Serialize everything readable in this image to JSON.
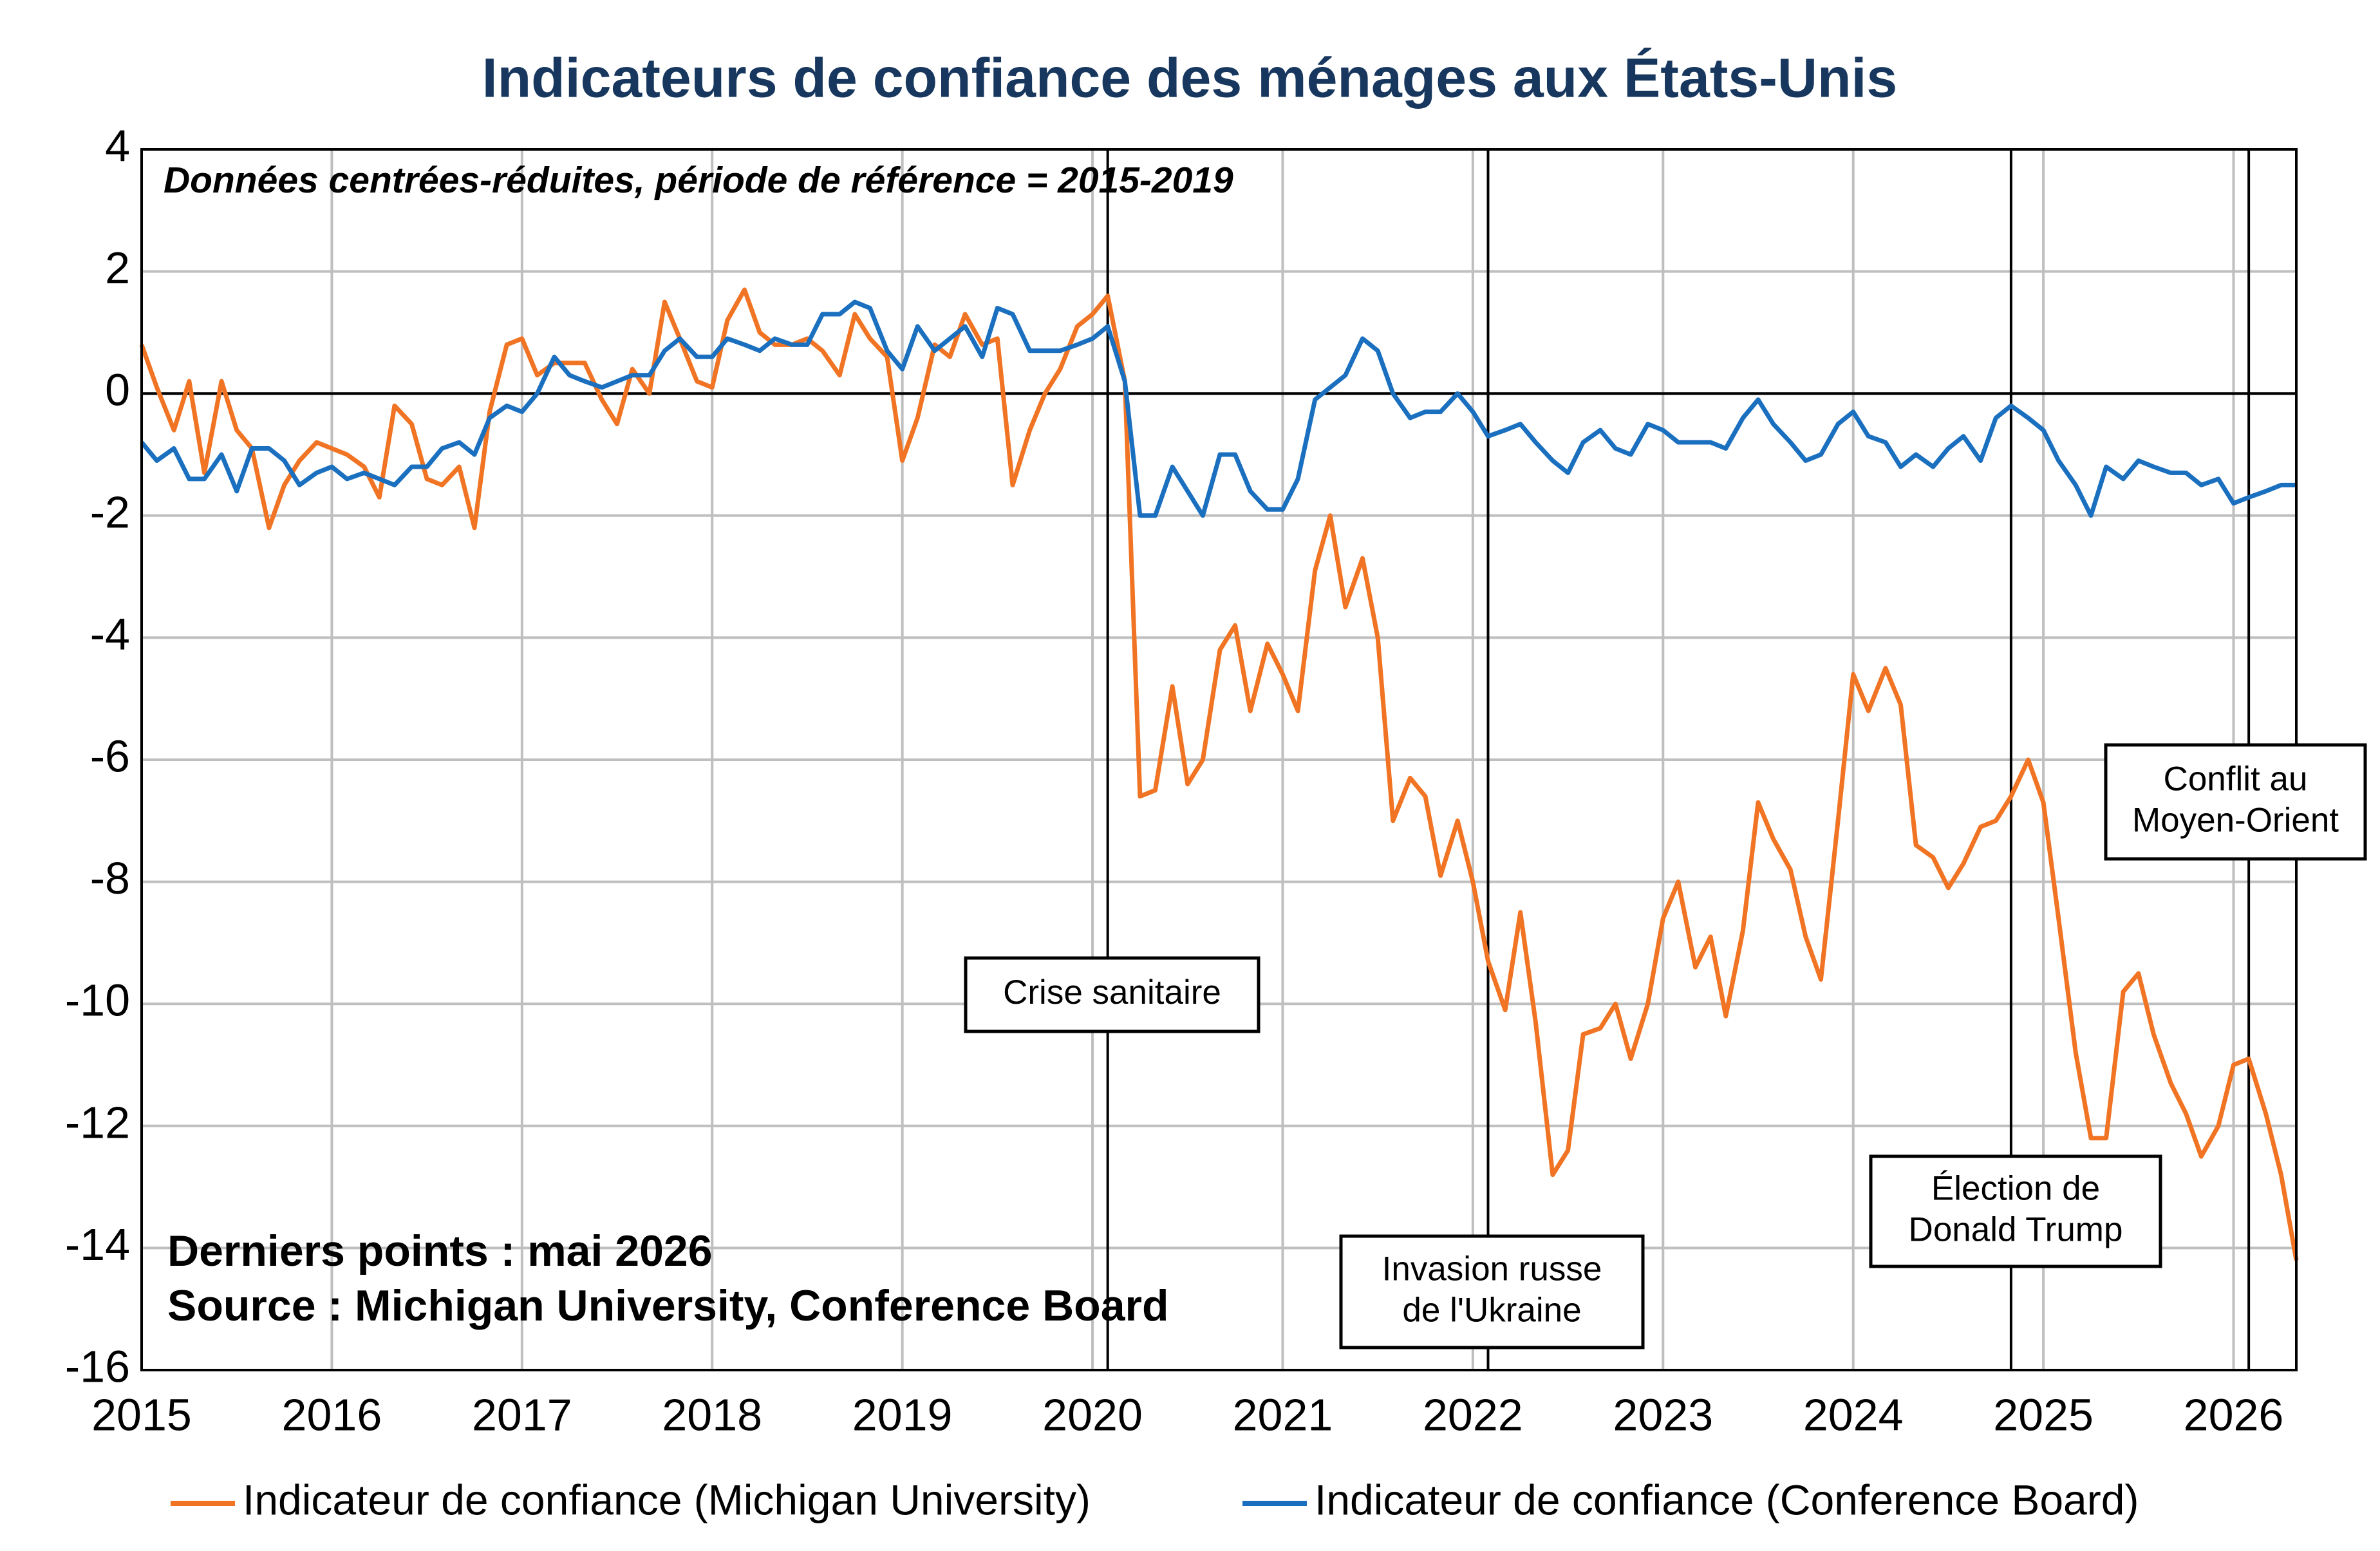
{
  "chart_data": {
    "type": "line",
    "title": "Indicateurs de confiance des ménages aux États-Unis",
    "subtitle": "Données centrées-réduites, période de référence = 2015-2019",
    "notes": [
      "Derniers points : mai 2026",
      "Source : Michigan University, Conference Board"
    ],
    "xlim": [
      2015,
      2026.33
    ],
    "xticks": [
      2015,
      2016,
      2017,
      2018,
      2019,
      2020,
      2021,
      2022,
      2023,
      2024,
      2025,
      2026
    ],
    "ylim": [
      -16,
      4
    ],
    "yticks": [
      -16,
      -14,
      -12,
      -10,
      -8,
      -6,
      -4,
      -2,
      0,
      2,
      4
    ],
    "grid": true,
    "x": [
      2015,
      2015.08,
      2015.17,
      2015.25,
      2015.33,
      2015.42,
      2015.5,
      2015.58,
      2015.67,
      2015.75,
      2015.83,
      2015.92,
      2016,
      2016.08,
      2016.17,
      2016.25,
      2016.33,
      2016.42,
      2016.5,
      2016.58,
      2016.67,
      2016.75,
      2016.83,
      2016.92,
      2017,
      2017.08,
      2017.17,
      2017.25,
      2017.33,
      2017.42,
      2017.5,
      2017.58,
      2017.67,
      2017.75,
      2017.83,
      2017.92,
      2018,
      2018.08,
      2018.17,
      2018.25,
      2018.33,
      2018.42,
      2018.5,
      2018.58,
      2018.67,
      2018.75,
      2018.83,
      2018.92,
      2019,
      2019.08,
      2019.17,
      2019.25,
      2019.33,
      2019.42,
      2019.5,
      2019.58,
      2019.67,
      2019.75,
      2019.83,
      2019.92,
      2020,
      2020.08,
      2020.17,
      2020.25,
      2020.33,
      2020.42,
      2020.5,
      2020.58,
      2020.67,
      2020.75,
      2020.83,
      2020.92,
      2021,
      2021.08,
      2021.17,
      2021.25,
      2021.33,
      2021.42,
      2021.5,
      2021.58,
      2021.67,
      2021.75,
      2021.83,
      2021.92,
      2022,
      2022.08,
      2022.17,
      2022.25,
      2022.33,
      2022.42,
      2022.5,
      2022.58,
      2022.67,
      2022.75,
      2022.83,
      2022.92,
      2023,
      2023.08,
      2023.17,
      2023.25,
      2023.33,
      2023.42,
      2023.5,
      2023.58,
      2023.67,
      2023.75,
      2023.83,
      2023.92,
      2024,
      2024.08,
      2024.17,
      2024.25,
      2024.33,
      2024.42,
      2024.5,
      2024.58,
      2024.67,
      2024.75,
      2024.83,
      2024.92,
      2025,
      2025.08,
      2025.17,
      2025.25,
      2025.33,
      2025.42,
      2025.5,
      2025.58,
      2025.67,
      2025.75,
      2025.83,
      2025.92,
      2026,
      2026.08,
      2026.17,
      2026.25,
      2026.33
    ],
    "series": [
      {
        "name": "Indicateur de confiance (Michigan University)",
        "color": "#f07423",
        "values": [
          0.8,
          0.1,
          -0.6,
          0.2,
          -1.3,
          0.2,
          -0.6,
          -0.9,
          -2.2,
          -1.5,
          -1.1,
          -0.8,
          -0.9,
          -1.0,
          -1.2,
          -1.7,
          -0.2,
          -0.5,
          -1.4,
          -1.5,
          -1.2,
          -2.2,
          -0.3,
          0.8,
          0.9,
          0.3,
          0.5,
          0.5,
          0.5,
          -0.1,
          -0.5,
          0.4,
          0.0,
          1.5,
          0.9,
          0.2,
          0.1,
          1.2,
          1.7,
          1.0,
          0.8,
          0.8,
          0.9,
          0.7,
          0.3,
          1.3,
          0.9,
          0.6,
          -1.1,
          -0.4,
          0.8,
          0.6,
          1.3,
          0.8,
          0.9,
          -1.5,
          -0.6,
          0.0,
          0.4,
          1.1,
          1.3,
          1.6,
          0.2,
          -6.6,
          -6.5,
          -4.8,
          -6.4,
          -6.0,
          -4.2,
          -3.8,
          -5.2,
          -4.1,
          -4.6,
          -5.2,
          -2.9,
          -2.0,
          -3.5,
          -2.7,
          -4.0,
          -7.0,
          -6.3,
          -6.6,
          -7.9,
          -7.0,
          -8.0,
          -9.3,
          -10.1,
          -8.5,
          -10.3,
          -12.8,
          -12.4,
          -10.5,
          -10.4,
          -10.0,
          -10.9,
          -10.0,
          -8.6,
          -8.0,
          -9.4,
          -8.9,
          -10.2,
          -8.8,
          -6.7,
          -7.3,
          -7.8,
          -8.9,
          -9.6,
          -7.0,
          -4.6,
          -5.2,
          -4.5,
          -5.1,
          -7.4,
          -7.6,
          -8.1,
          -7.7,
          -7.1,
          -7.0,
          -6.6,
          -6.0,
          -6.7,
          -8.6,
          -10.8,
          -12.2,
          -12.2,
          -9.8,
          -9.5,
          -10.5,
          -11.3,
          -11.8,
          -12.5,
          -12.0,
          -11.0,
          -10.9,
          -11.8,
          -12.8,
          -14.2
        ]
      },
      {
        "name": "Indicateur de confiance (Conference Board)",
        "color": "#1a6fbf",
        "values": [
          -0.8,
          -1.1,
          -0.9,
          -1.4,
          -1.4,
          -1.0,
          -1.6,
          -0.9,
          -0.9,
          -1.1,
          -1.5,
          -1.3,
          -1.2,
          -1.4,
          -1.3,
          -1.4,
          -1.5,
          -1.2,
          -1.2,
          -0.9,
          -0.8,
          -1.0,
          -0.4,
          -0.2,
          -0.3,
          0.0,
          0.6,
          0.3,
          0.2,
          0.1,
          0.2,
          0.3,
          0.3,
          0.7,
          0.9,
          0.6,
          0.6,
          0.9,
          0.8,
          0.7,
          0.9,
          0.8,
          0.8,
          1.3,
          1.3,
          1.5,
          1.4,
          0.7,
          0.4,
          1.1,
          0.7,
          0.9,
          1.1,
          0.6,
          1.4,
          1.3,
          0.7,
          0.7,
          0.7,
          0.8,
          0.9,
          1.1,
          0.2,
          -2.0,
          -2.0,
          -1.2,
          -1.6,
          -2.0,
          -1.0,
          -1.0,
          -1.6,
          -1.9,
          -1.9,
          -1.4,
          -0.1,
          0.1,
          0.3,
          0.9,
          0.7,
          0.0,
          -0.4,
          -0.3,
          -0.3,
          0.0,
          -0.3,
          -0.7,
          -0.6,
          -0.5,
          -0.8,
          -1.1,
          -1.3,
          -0.8,
          -0.6,
          -0.9,
          -1.0,
          -0.5,
          -0.6,
          -0.8,
          -0.8,
          -0.8,
          -0.9,
          -0.4,
          -0.1,
          -0.5,
          -0.8,
          -1.1,
          -1.0,
          -0.5,
          -0.3,
          -0.7,
          -0.8,
          -1.2,
          -1.0,
          -1.2,
          -0.9,
          -0.7,
          -1.1,
          -0.4,
          -0.2,
          -0.4,
          -0.6,
          -1.1,
          -1.5,
          -2.0,
          -1.2,
          -1.4,
          -1.1,
          -1.2,
          -1.3,
          -1.3,
          -1.5,
          -1.4,
          -1.8,
          -1.7,
          -1.6,
          -1.5,
          -1.5
        ]
      }
    ],
    "events": [
      {
        "x": 2020.08,
        "label": [
          "Crise sanitaire"
        ]
      },
      {
        "x": 2022.08,
        "label": [
          "Invasion russe",
          "de l'Ukraine"
        ]
      },
      {
        "x": 2024.83,
        "label": [
          "Élection de",
          "Donald Trump"
        ]
      },
      {
        "x": 2026.08,
        "label": [
          "Conflit au",
          "Moyen-Orient"
        ]
      }
    ]
  }
}
